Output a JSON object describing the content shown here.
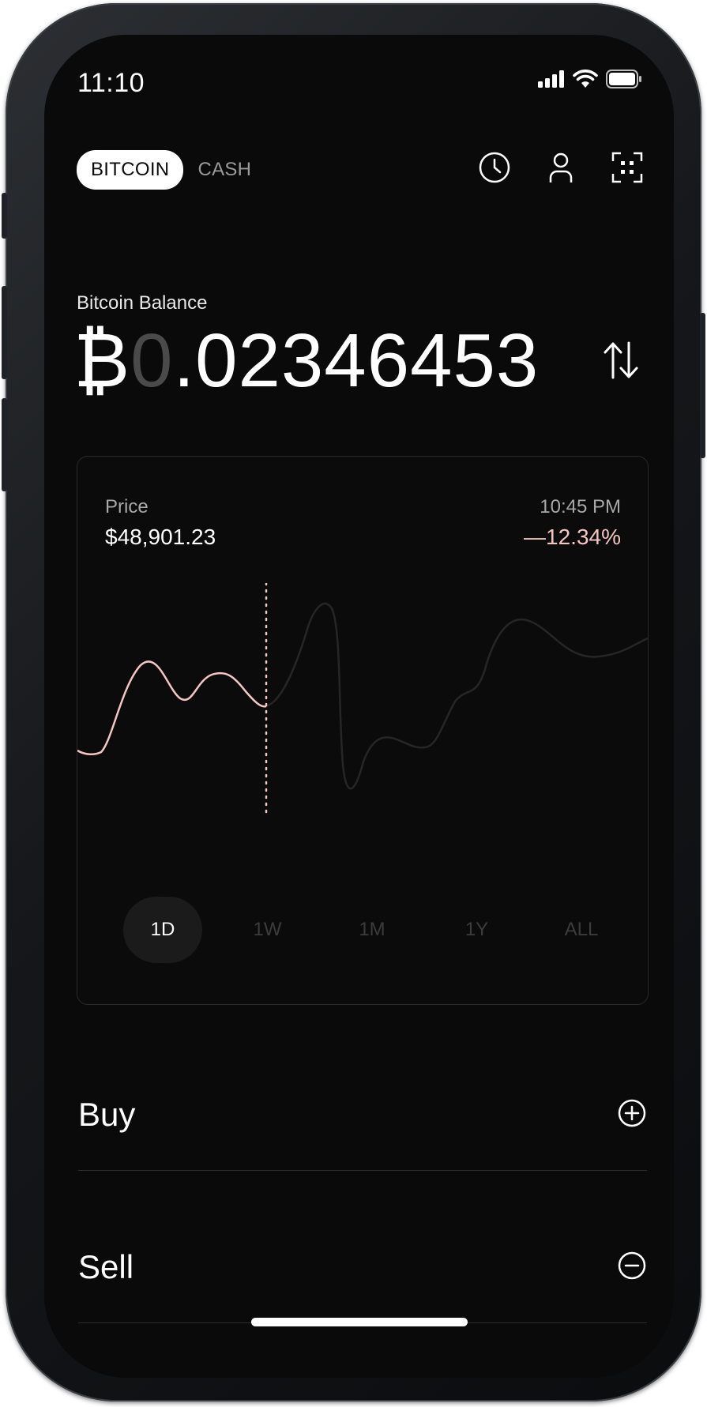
{
  "status_bar": {
    "time": "11:10",
    "icons": [
      "cellular-signal-icon",
      "wifi-icon",
      "battery-icon"
    ]
  },
  "header": {
    "segments": [
      {
        "label": "BITCOIN",
        "active": true
      },
      {
        "label": "CASH",
        "active": false
      }
    ],
    "icons": [
      "clock-icon",
      "profile-icon",
      "scan-icon"
    ]
  },
  "balance": {
    "label": "Bitcoin Balance",
    "symbol": "₿",
    "dim_digits": "0",
    "value_rest": ".02346453",
    "swap_icon": "swap-arrows-icon"
  },
  "price_card": {
    "price_label": "Price",
    "price_value": "$48,901.23",
    "time": "10:45 PM",
    "change": "—12.34%",
    "colors": {
      "highlight_line": "#f3c6c2",
      "dim_line": "#262626",
      "change_text": "#f3c6c2"
    },
    "ranges": [
      {
        "label": "1D",
        "active": true
      },
      {
        "label": "1W",
        "active": false
      },
      {
        "label": "1M",
        "active": false
      },
      {
        "label": "1Y",
        "active": false
      },
      {
        "label": "ALL",
        "active": false
      }
    ]
  },
  "actions": [
    {
      "label": "Buy",
      "icon": "plus-circle-icon"
    },
    {
      "label": "Sell",
      "icon": "minus-circle-icon"
    }
  ]
}
